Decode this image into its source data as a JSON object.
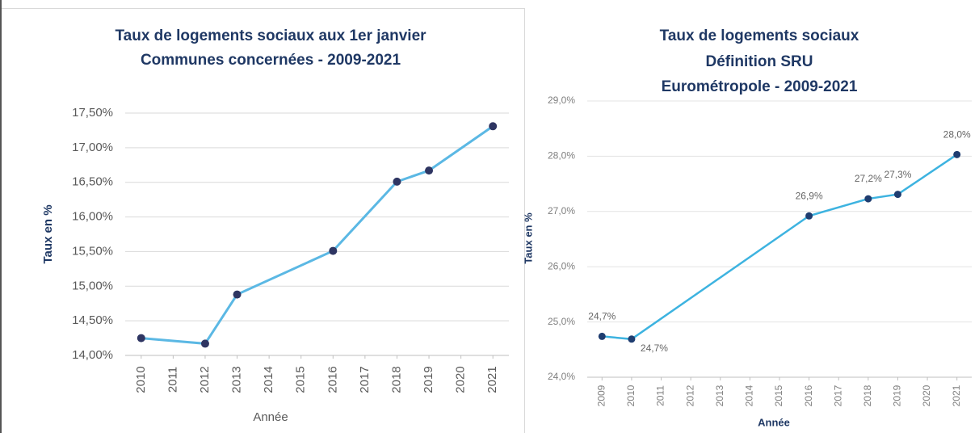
{
  "chart_data": [
    {
      "type": "line",
      "title": "Taux de logements sociaux aux 1er janvier",
      "subtitle": "Communes concernées - 2009-2021",
      "x_label": "Année",
      "y_label": "Taux en %",
      "x": [
        2010,
        2012,
        2013,
        2016,
        2018,
        2019,
        2021
      ],
      "series": [
        {
          "name": "Taux",
          "color": "#5bb8e4",
          "values": [
            14.25,
            14.17,
            14.88,
            15.51,
            16.51,
            16.67,
            17.31
          ]
        }
      ],
      "marker_color": "#2e3562",
      "xlim": [
        2009.5,
        2021.5
      ],
      "xticks": [
        2010,
        2011,
        2012,
        2013,
        2014,
        2015,
        2016,
        2017,
        2018,
        2019,
        2020,
        2021
      ],
      "ylim": [
        14,
        17.5
      ],
      "yticks": [
        {
          "value": 14,
          "label": "14,00%"
        },
        {
          "value": 14.5,
          "label": "14,50%"
        },
        {
          "value": 15,
          "label": "15,00%"
        },
        {
          "value": 15.5,
          "label": "15,50%"
        },
        {
          "value": 16,
          "label": "16,00%"
        },
        {
          "value": 16.5,
          "label": "16,50%"
        },
        {
          "value": 17,
          "label": "17,00%"
        },
        {
          "value": 17.5,
          "label": "17,50%"
        }
      ],
      "grid": true
    },
    {
      "type": "line",
      "title": "Taux de logements sociaux",
      "subtitle": "Définition SRU",
      "subtitle2": "Eurométropole - 2009-2021",
      "x_label": "Année",
      "y_label": "Taux en %",
      "x": [
        2009,
        2010,
        2016,
        2018,
        2019,
        2021
      ],
      "series": [
        {
          "name": "Taux",
          "color": "#3db3e0",
          "values": [
            24.74,
            24.69,
            26.92,
            27.23,
            27.31,
            28.03
          ],
          "value_labels": [
            "24,7%",
            "24,7%",
            "26,9%",
            "27,2%",
            "27,3%",
            "28,0%"
          ]
        }
      ],
      "marker_color": "#1f3d70",
      "xlim": [
        2008.5,
        2021.5
      ],
      "xticks": [
        2009,
        2010,
        2011,
        2012,
        2013,
        2014,
        2015,
        2016,
        2017,
        2018,
        2019,
        2020,
        2021
      ],
      "ylim": [
        24,
        29
      ],
      "yticks": [
        {
          "value": 24,
          "label": "24,0%"
        },
        {
          "value": 25,
          "label": "25,0%"
        },
        {
          "value": 26,
          "label": "26,0%"
        },
        {
          "value": 27,
          "label": "27,0%"
        },
        {
          "value": 28,
          "label": "28,0%"
        },
        {
          "value": 29,
          "label": "29,0%"
        }
      ],
      "grid": true
    }
  ]
}
